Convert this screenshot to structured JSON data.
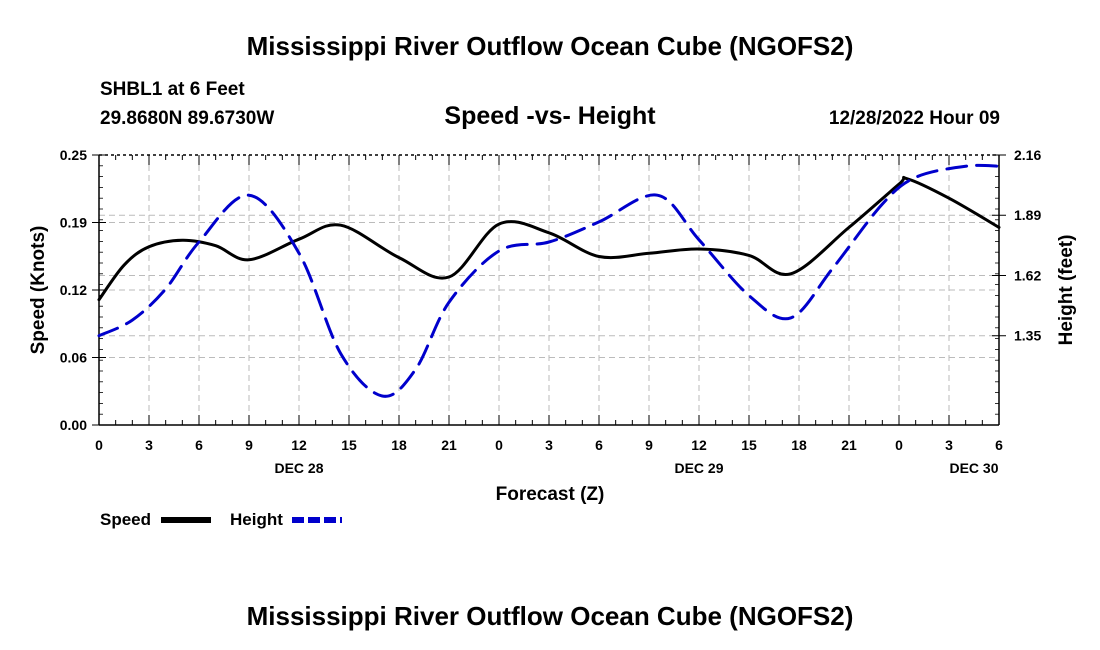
{
  "page": {
    "top_title": "Mississippi River Outflow Ocean Cube (NGOFS2)",
    "bottom_title": "Mississippi River Outflow Ocean Cube (NGOFS2)",
    "station": "SHBL1 at 6 Feet",
    "coords": "29.8680N  89.6730W",
    "datetime": "12/28/2022 Hour 09"
  },
  "chart_data": {
    "type": "line",
    "title": "Speed -vs- Height",
    "xlabel": "Forecast (Z)",
    "ylabel": "Speed (Knots)",
    "y2label": "Height (feet)",
    "ylim": [
      0,
      0.25
    ],
    "y2lim": [
      0.95,
      2.16
    ],
    "xlim": [
      0,
      54
    ],
    "yticks": [
      "0.00",
      "0.06",
      "0.12",
      "0.19",
      "0.25"
    ],
    "ytick_values": [
      0,
      0.0625,
      0.125,
      0.1875,
      0.25
    ],
    "y2ticks": [
      "1.35",
      "1.62",
      "1.89",
      "2.16"
    ],
    "y2tick_values": [
      1.35,
      1.62,
      1.89,
      2.16
    ],
    "xticks": [
      {
        "x": 0,
        "label": "0"
      },
      {
        "x": 3,
        "label": "3"
      },
      {
        "x": 6,
        "label": "6"
      },
      {
        "x": 9,
        "label": "9"
      },
      {
        "x": 12,
        "label": "12"
      },
      {
        "x": 15,
        "label": "15"
      },
      {
        "x": 18,
        "label": "18"
      },
      {
        "x": 21,
        "label": "21"
      },
      {
        "x": 24,
        "label": "0"
      },
      {
        "x": 27,
        "label": "3"
      },
      {
        "x": 30,
        "label": "6"
      },
      {
        "x": 33,
        "label": "9"
      },
      {
        "x": 36,
        "label": "12"
      },
      {
        "x": 39,
        "label": "15"
      },
      {
        "x": 42,
        "label": "18"
      },
      {
        "x": 45,
        "label": "21"
      },
      {
        "x": 48,
        "label": "0"
      },
      {
        "x": 51,
        "label": "3"
      },
      {
        "x": 54,
        "label": "6"
      }
    ],
    "date_labels": [
      {
        "x": 12,
        "label": "DEC 28"
      },
      {
        "x": 36,
        "label": "DEC 29"
      },
      {
        "x": 52.5,
        "label": "DEC 30"
      }
    ],
    "series": [
      {
        "name": "Speed",
        "axis": "left",
        "color": "#000000",
        "dash": "solid",
        "x": [
          0,
          1.5,
          3,
          5,
          7,
          9,
          12,
          14.5,
          18,
          21,
          24,
          27,
          30,
          33,
          36,
          39,
          41.5,
          45,
          48,
          48.5,
          51,
          54
        ],
        "values": [
          0.116,
          0.148,
          0.165,
          0.171,
          0.166,
          0.153,
          0.172,
          0.185,
          0.155,
          0.137,
          0.186,
          0.178,
          0.156,
          0.159,
          0.163,
          0.157,
          0.14,
          0.183,
          0.223,
          0.228,
          0.21,
          0.183
        ]
      },
      {
        "name": "Height",
        "axis": "right",
        "color": "#0000cc",
        "dash": "dashed",
        "x": [
          0,
          2,
          4,
          6,
          9,
          12,
          14.5,
          17,
          19,
          21,
          24,
          27,
          30,
          33.5,
          36,
          39,
          41.5,
          44,
          47,
          49,
          52,
          54
        ],
        "values": [
          1.35,
          1.42,
          1.56,
          1.77,
          1.98,
          1.72,
          1.27,
          1.08,
          1.2,
          1.5,
          1.73,
          1.77,
          1.86,
          1.98,
          1.78,
          1.53,
          1.43,
          1.65,
          1.94,
          2.06,
          2.11,
          2.11
        ]
      }
    ],
    "legend": [
      {
        "name": "Speed",
        "color": "#000000",
        "dash": "solid"
      },
      {
        "name": "Height",
        "color": "#0000cc",
        "dash": "dashed"
      }
    ]
  }
}
